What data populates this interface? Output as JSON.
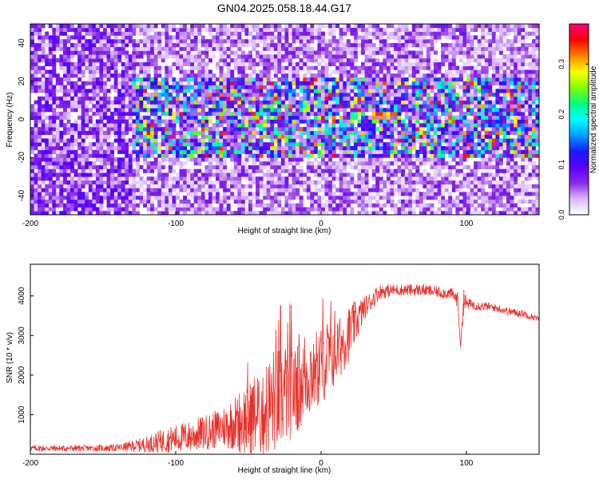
{
  "figure_title": "GN04.2025.058.18.44.G17",
  "colors": {
    "snr_line": "#e8302a",
    "axis": "#000000",
    "colorbar_stops": [
      "#ffffff",
      "#d9b8ff",
      "#8a2be2",
      "#5a00ff",
      "#1a1aff",
      "#00a0ff",
      "#00ffff",
      "#00ff80",
      "#80ff00",
      "#ffff00",
      "#ff8000",
      "#ff0000",
      "#ff0080"
    ]
  },
  "chart_data": [
    {
      "type": "heatmap",
      "title": "",
      "xlabel": "Height of straight line (km)",
      "ylabel": "Frequency (Hz)",
      "xlim": [
        -200,
        150
      ],
      "ylim": [
        -50,
        50
      ],
      "x_ticks": [
        -200,
        -100,
        0,
        100
      ],
      "y_ticks": [
        -40,
        -20,
        0,
        20,
        40
      ],
      "colorbar": {
        "label": "Normalized spectral amplitude",
        "range": [
          0.0,
          0.38
        ],
        "ticks": [
          0.0,
          0.1,
          0.2,
          0.3
        ],
        "tick_labels": [
          "0.0",
          "0.1",
          "0.2",
          "0.3"
        ]
      },
      "features": [
        {
          "description": "peak",
          "x_range": [
            35,
            50
          ],
          "y": 1,
          "value": 0.35
        },
        {
          "description": "band",
          "x_range": [
            -120,
            150
          ],
          "y_range": [
            -20,
            20
          ],
          "typical_value": 0.12
        },
        {
          "description": "band",
          "x_range": [
            -200,
            -130
          ],
          "y_range": [
            -50,
            50
          ],
          "typical_value": 0.06
        }
      ]
    },
    {
      "type": "line",
      "title": "",
      "xlabel": "Height of straight line (km)",
      "ylabel": "SNR (10 * v/v)",
      "xlim": [
        -200,
        150
      ],
      "ylim": [
        0,
        4800
      ],
      "x_ticks": [
        -200,
        -100,
        0,
        100
      ],
      "y_ticks": [
        1000,
        2000,
        3000,
        4000
      ],
      "series": [
        {
          "x": [
            -200,
            -180,
            -160,
            -140,
            -120,
            -110,
            -100,
            -90,
            -80,
            -70,
            -60,
            -50,
            -40,
            -30,
            -20,
            -10,
            0,
            10,
            20,
            30,
            40,
            50,
            60,
            70,
            80,
            90,
            94,
            96,
            98,
            100,
            110,
            120,
            130,
            140,
            150
          ],
          "y": [
            150,
            150,
            150,
            160,
            250,
            330,
            400,
            450,
            550,
            650,
            800,
            900,
            1100,
            1400,
            1700,
            2000,
            2300,
            2600,
            3100,
            3700,
            4100,
            4150,
            4150,
            4150,
            4100,
            4050,
            3900,
            2700,
            3900,
            3800,
            3750,
            3700,
            3600,
            3550,
            3400
          ],
          "noise_amplitude": [
            80,
            80,
            80,
            90,
            200,
            300,
            350,
            400,
            450,
            500,
            700,
            1000,
            1200,
            1400,
            1300,
            1200,
            1100,
            900,
            700,
            300,
            200,
            150,
            150,
            150,
            150,
            150,
            200,
            0,
            400,
            150,
            120,
            100,
            100,
            100,
            80
          ]
        }
      ]
    }
  ]
}
